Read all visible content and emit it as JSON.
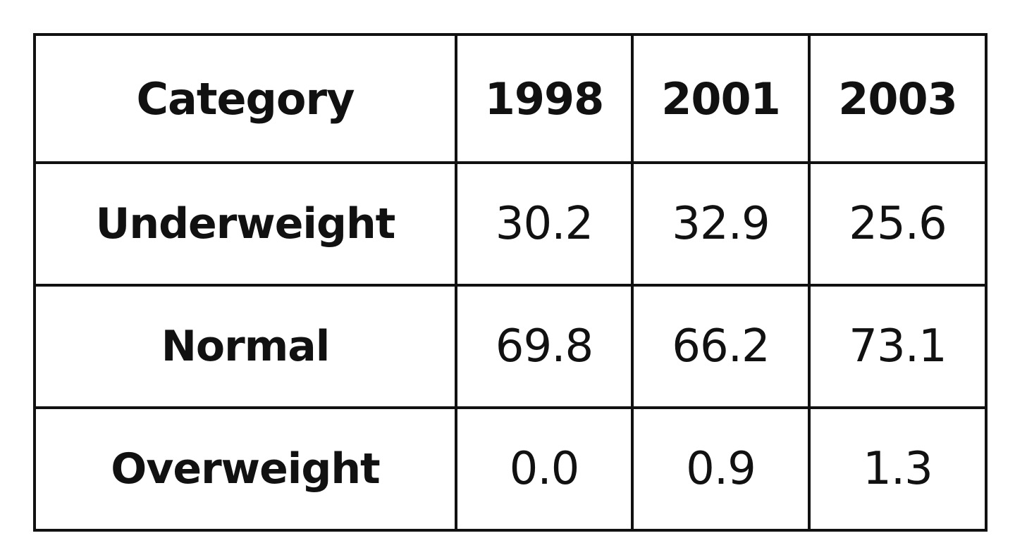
{
  "chart_data": {
    "type": "table",
    "columns": [
      "Category",
      "1998",
      "2001",
      "2003"
    ],
    "rows": [
      {
        "label": "Underweight",
        "values": [
          "30.2",
          "32.9",
          "25.6"
        ]
      },
      {
        "label": "Normal",
        "values": [
          "69.8",
          "66.2",
          "73.1"
        ]
      },
      {
        "label": "Overweight",
        "values": [
          "0.0",
          "0.9",
          "1.3"
        ]
      }
    ]
  }
}
